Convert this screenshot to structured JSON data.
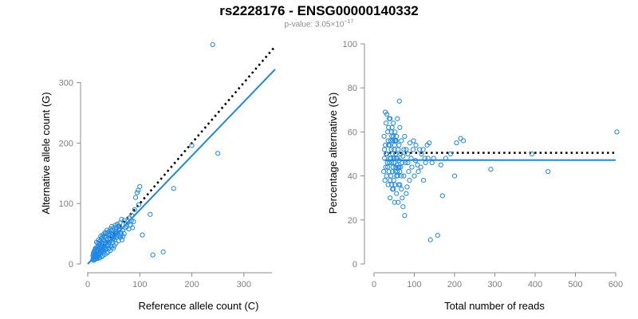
{
  "header": {
    "title": "rs2228176 - ENSG00000140332",
    "pvalue_prefix": "p-value: 3.05×10",
    "pvalue_exponent": "−17"
  },
  "colors": {
    "points": "#1e88e5",
    "fit_line": "#1e88e5",
    "reference_line": "#000000",
    "axis": "#8c8c8c"
  },
  "chart_data": [
    {
      "type": "scatter",
      "title": "",
      "xlabel": "Reference allele count (C)",
      "ylabel": "Alternative allele count (G)",
      "xlim": [
        0,
        360
      ],
      "ylim": [
        0,
        380
      ],
      "xticks": [
        0,
        100,
        200,
        300
      ],
      "yticks": [
        0,
        100,
        200,
        300
      ],
      "lines": [
        {
          "name": "",
          "style": "dotted",
          "x": [
            10,
            360
          ],
          "y": [
            10,
            360
          ]
        },
        {
          "name": "",
          "style": "solid",
          "x": [
            0,
            360
          ],
          "y": [
            0,
            322
          ]
        }
      ],
      "points": [
        [
          240,
          363
        ],
        [
          250,
          183
        ],
        [
          200,
          196
        ],
        [
          165,
          125
        ],
        [
          145,
          20
        ],
        [
          125,
          15
        ],
        [
          120,
          82
        ],
        [
          105,
          48
        ],
        [
          100,
          128
        ],
        [
          97,
          122
        ],
        [
          95,
          118
        ],
        [
          92,
          110
        ],
        [
          98,
          98
        ],
        [
          90,
          90
        ],
        [
          85,
          80
        ],
        [
          80,
          76
        ],
        [
          88,
          70
        ],
        [
          75,
          62
        ],
        [
          70,
          72
        ],
        [
          65,
          74
        ],
        [
          62,
          68
        ],
        [
          60,
          56
        ],
        [
          58,
          62
        ],
        [
          55,
          60
        ],
        [
          56,
          48
        ],
        [
          52,
          52
        ],
        [
          50,
          45
        ],
        [
          48,
          50
        ],
        [
          47,
          40
        ],
        [
          45,
          55
        ],
        [
          44,
          42
        ],
        [
          42,
          36
        ],
        [
          40,
          48
        ],
        [
          38,
          30
        ],
        [
          36,
          40
        ],
        [
          35,
          35
        ],
        [
          33,
          28
        ],
        [
          32,
          38
        ],
        [
          30,
          30
        ],
        [
          29,
          24
        ],
        [
          28,
          34
        ],
        [
          27,
          20
        ],
        [
          26,
          28
        ],
        [
          25,
          22
        ],
        [
          24,
          30
        ],
        [
          23,
          18
        ],
        [
          22,
          26
        ],
        [
          21,
          15
        ],
        [
          20,
          22
        ],
        [
          19,
          28
        ],
        [
          18,
          16
        ],
        [
          17,
          20
        ],
        [
          16,
          12
        ],
        [
          15,
          18
        ],
        [
          14,
          10
        ],
        [
          13,
          14
        ],
        [
          12,
          16
        ],
        [
          11,
          12
        ],
        [
          10,
          8
        ],
        [
          12,
          20
        ],
        [
          14,
          24
        ],
        [
          16,
          26
        ],
        [
          18,
          24
        ],
        [
          20,
          30
        ],
        [
          22,
          34
        ],
        [
          24,
          38
        ],
        [
          26,
          42
        ],
        [
          28,
          44
        ],
        [
          30,
          40
        ],
        [
          32,
          46
        ],
        [
          34,
          50
        ],
        [
          36,
          44
        ],
        [
          38,
          52
        ],
        [
          40,
          36
        ],
        [
          42,
          50
        ],
        [
          44,
          58
        ],
        [
          46,
          62
        ],
        [
          48,
          56
        ],
        [
          50,
          60
        ],
        [
          53,
          64
        ],
        [
          57,
          66
        ],
        [
          61,
          58
        ],
        [
          64,
          52
        ],
        [
          67,
          56
        ],
        [
          70,
          50
        ],
        [
          72,
          60
        ],
        [
          74,
          66
        ],
        [
          77,
          70
        ],
        [
          79,
          58
        ],
        [
          82,
          64
        ],
        [
          84,
          72
        ],
        [
          86,
          60
        ],
        [
          68,
          46
        ],
        [
          66,
          40
        ],
        [
          63,
          44
        ],
        [
          59,
          38
        ],
        [
          54,
          34
        ],
        [
          51,
          30
        ],
        [
          49,
          26
        ],
        [
          46,
          28
        ],
        [
          43,
          22
        ],
        [
          41,
          26
        ],
        [
          39,
          20
        ],
        [
          37,
          18
        ],
        [
          35,
          24
        ],
        [
          33,
          16
        ],
        [
          31,
          20
        ],
        [
          29,
          14
        ],
        [
          27,
          12
        ],
        [
          25,
          16
        ],
        [
          23,
          10
        ],
        [
          21,
          12
        ],
        [
          19,
          9
        ],
        [
          17,
          10
        ],
        [
          15,
          8
        ],
        [
          13,
          7
        ],
        [
          11,
          6
        ],
        [
          10,
          14
        ],
        [
          12,
          10
        ],
        [
          16,
          14
        ],
        [
          20,
          16
        ],
        [
          24,
          18
        ],
        [
          28,
          22
        ],
        [
          32,
          26
        ],
        [
          36,
          30
        ],
        [
          40,
          32
        ],
        [
          44,
          30
        ],
        [
          48,
          36
        ],
        [
          52,
          40
        ],
        [
          56,
          44
        ],
        [
          60,
          46
        ],
        [
          64,
          48
        ],
        [
          35,
          46
        ],
        [
          31,
          34
        ],
        [
          27,
          36
        ],
        [
          23,
          32
        ],
        [
          19,
          34
        ],
        [
          15,
          26
        ],
        [
          13,
          22
        ],
        [
          11,
          18
        ],
        [
          17,
          36
        ],
        [
          21,
          40
        ],
        [
          25,
          46
        ],
        [
          29,
          48
        ],
        [
          33,
          52
        ],
        [
          37,
          56
        ],
        [
          41,
          54
        ],
        [
          45,
          46
        ],
        [
          49,
          42
        ],
        [
          53,
          50
        ],
        [
          57,
          52
        ],
        [
          61,
          62
        ]
      ]
    },
    {
      "type": "scatter",
      "title": "",
      "xlabel": "Total number of reads",
      "ylabel": "Percentage alternative (G)",
      "xlim": [
        0,
        600
      ],
      "ylim": [
        0,
        100
      ],
      "xticks": [
        0,
        100,
        200,
        300,
        400,
        500,
        600
      ],
      "yticks": [
        0,
        20,
        40,
        60,
        80,
        100
      ],
      "lines": [
        {
          "name": "",
          "style": "dotted",
          "x": [
            25,
            600
          ],
          "y": [
            50.5,
            50.5
          ]
        },
        {
          "name": "",
          "style": "solid",
          "x": [
            25,
            600
          ],
          "y": [
            47.2,
            47.2
          ]
        }
      ],
      "points": [
        [
          603,
          60
        ],
        [
          432,
          42
        ],
        [
          392,
          50
        ],
        [
          290,
          43
        ],
        [
          222,
          56
        ],
        [
          215,
          57
        ],
        [
          205,
          55
        ],
        [
          200,
          40
        ],
        [
          190,
          50
        ],
        [
          178,
          48
        ],
        [
          170,
          31
        ],
        [
          166,
          45
        ],
        [
          158,
          13
        ],
        [
          148,
          48
        ],
        [
          140,
          11
        ],
        [
          137,
          55
        ],
        [
          132,
          54
        ],
        [
          128,
          46
        ],
        [
          123,
          38
        ],
        [
          118,
          50
        ],
        [
          113,
          52
        ],
        [
          108,
          45
        ],
        [
          103,
          47
        ],
        [
          100,
          40
        ],
        [
          97,
          52
        ],
        [
          94,
          44
        ],
        [
          92,
          48
        ],
        [
          89,
          55
        ],
        [
          86,
          42
        ],
        [
          84,
          50
        ],
        [
          82,
          35
        ],
        [
          80,
          52
        ],
        [
          78,
          46
        ],
        [
          76,
          58
        ],
        [
          74,
          40
        ],
        [
          72,
          49
        ],
        [
          70,
          30
        ],
        [
          68,
          56
        ],
        [
          66,
          44
        ],
        [
          64,
          62
        ],
        [
          63,
          74
        ],
        [
          62,
          47
        ],
        [
          61,
          36
        ],
        [
          60,
          52
        ],
        [
          59,
          40
        ],
        [
          58,
          66
        ],
        [
          57,
          45
        ],
        [
          56,
          32
        ],
        [
          55,
          56
        ],
        [
          54,
          50
        ],
        [
          53,
          42
        ],
        [
          52,
          60
        ],
        [
          51,
          28
        ],
        [
          50,
          48
        ],
        [
          49,
          38
        ],
        [
          48,
          58
        ],
        [
          47,
          44
        ],
        [
          46,
          34
        ],
        [
          45,
          62
        ],
        [
          44,
          46
        ],
        [
          43,
          52
        ],
        [
          42,
          40
        ],
        [
          41,
          56
        ],
        [
          40,
          30
        ],
        [
          39,
          48
        ],
        [
          38,
          66
        ],
        [
          37,
          42
        ],
        [
          36,
          54
        ],
        [
          35,
          36
        ],
        [
          34,
          60
        ],
        [
          33,
          46
        ],
        [
          32,
          50
        ],
        [
          31,
          40
        ],
        [
          30,
          64
        ],
        [
          29,
          44
        ],
        [
          28,
          54
        ],
        [
          27,
          38
        ],
        [
          26,
          48
        ],
        [
          25,
          58
        ],
        [
          24,
          42
        ],
        [
          28,
          69
        ],
        [
          32,
          68
        ],
        [
          36,
          62
        ],
        [
          40,
          66
        ],
        [
          44,
          58
        ],
        [
          48,
          64
        ],
        [
          52,
          56
        ],
        [
          56,
          58
        ],
        [
          60,
          28
        ],
        [
          64,
          36
        ],
        [
          68,
          34
        ],
        [
          72,
          26
        ],
        [
          76,
          22
        ],
        [
          80,
          32
        ],
        [
          84,
          46
        ],
        [
          88,
          38
        ],
        [
          46,
          50
        ],
        [
          50,
          52
        ],
        [
          54,
          44
        ],
        [
          58,
          48
        ],
        [
          62,
          54
        ],
        [
          66,
          50
        ],
        [
          70,
          46
        ],
        [
          74,
          52
        ],
        [
          34,
          44
        ],
        [
          38,
          46
        ],
        [
          42,
          48
        ],
        [
          46,
          42
        ],
        [
          50,
          46
        ],
        [
          54,
          56
        ],
        [
          58,
          42
        ],
        [
          62,
          44
        ],
        [
          30,
          50
        ],
        [
          26,
          52
        ],
        [
          35,
          56
        ],
        [
          39,
          54
        ],
        [
          43,
          60
        ],
        [
          47,
          56
        ],
        [
          51,
          54
        ],
        [
          55,
          48
        ],
        [
          40,
          38
        ],
        [
          44,
          36
        ],
        [
          48,
          34
        ],
        [
          52,
          36
        ],
        [
          56,
          40
        ],
        [
          60,
          44
        ],
        [
          64,
          42
        ],
        [
          68,
          40
        ],
        [
          98,
          56
        ],
        [
          104,
          54
        ],
        [
          110,
          42
        ],
        [
          116,
          44
        ],
        [
          122,
          52
        ],
        [
          126,
          48
        ],
        [
          134,
          48
        ],
        [
          144,
          46
        ]
      ]
    }
  ]
}
